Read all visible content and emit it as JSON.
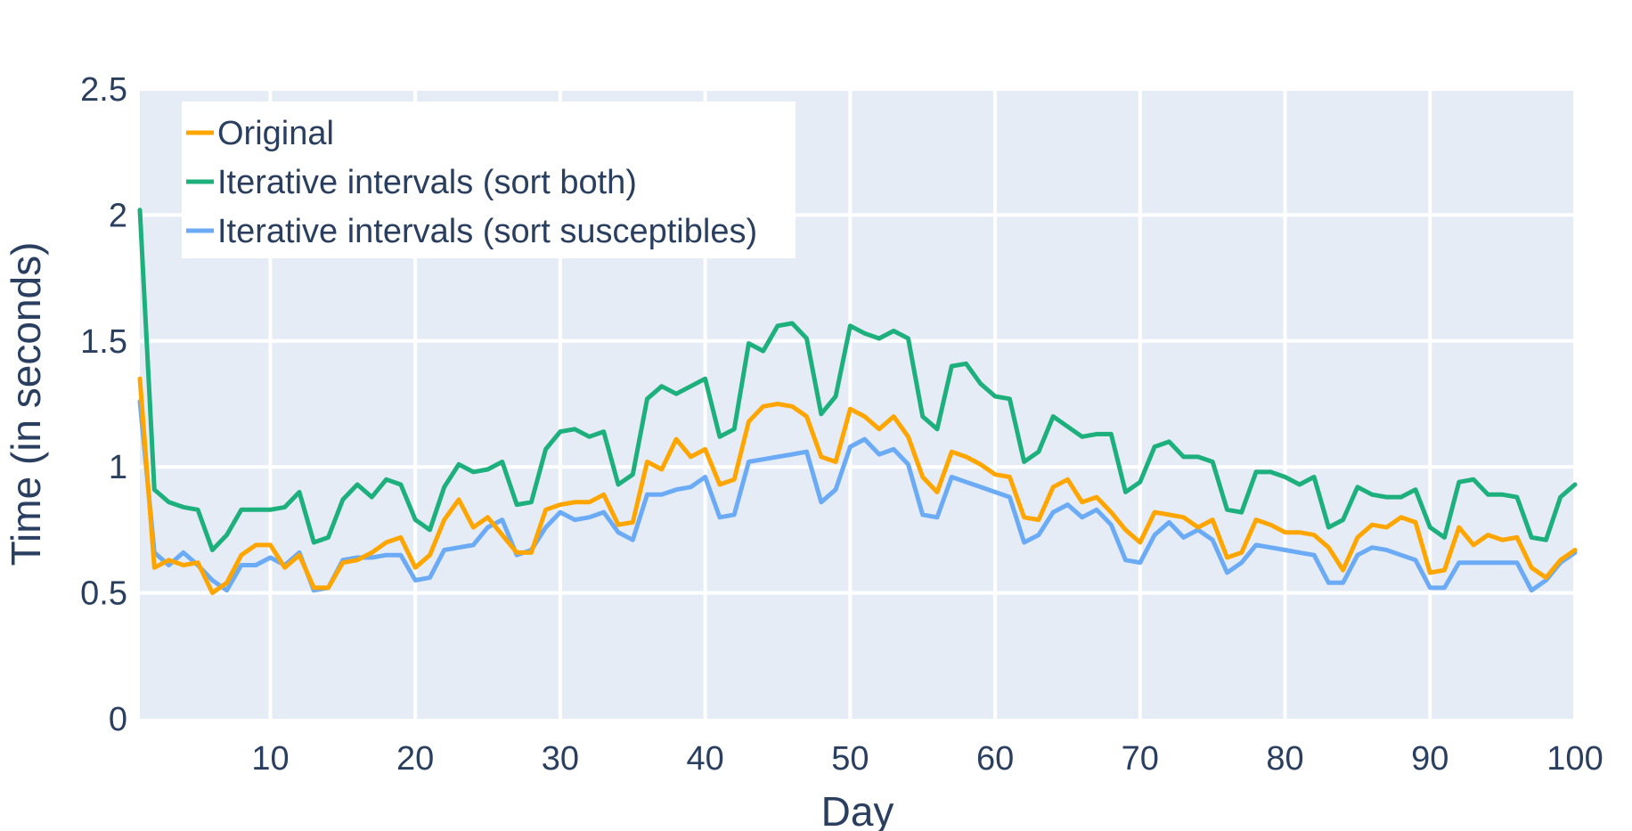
{
  "chart_data": {
    "type": "line",
    "xlabel": "Day",
    "ylabel": "Time (in seconds)",
    "xlim": [
      1,
      100
    ],
    "ylim": [
      0,
      2.5
    ],
    "x_ticks": [
      10,
      20,
      30,
      40,
      50,
      60,
      70,
      80,
      90,
      100
    ],
    "x_tick_labels": [
      "10",
      "20",
      "30",
      "40",
      "50",
      "60",
      "70",
      "80",
      "90",
      "100"
    ],
    "y_ticks": [
      0,
      0.5,
      1,
      1.5,
      2,
      2.5
    ],
    "y_tick_labels": [
      "0",
      "0.5",
      "1",
      "1.5",
      "2",
      "2.5"
    ],
    "grid": true,
    "plot_background": "#e5ecf6",
    "legend_position": "top-left",
    "x": [
      1,
      2,
      3,
      4,
      5,
      6,
      7,
      8,
      9,
      10,
      11,
      12,
      13,
      14,
      15,
      16,
      17,
      18,
      19,
      20,
      21,
      22,
      23,
      24,
      25,
      26,
      27,
      28,
      29,
      30,
      31,
      32,
      33,
      34,
      35,
      36,
      37,
      38,
      39,
      40,
      41,
      42,
      43,
      44,
      45,
      46,
      47,
      48,
      49,
      50,
      51,
      52,
      53,
      54,
      55,
      56,
      57,
      58,
      59,
      60,
      61,
      62,
      63,
      64,
      65,
      66,
      67,
      68,
      69,
      70,
      71,
      72,
      73,
      74,
      75,
      76,
      77,
      78,
      79,
      80,
      81,
      82,
      83,
      84,
      85,
      86,
      87,
      88,
      89,
      90,
      91,
      92,
      93,
      94,
      95,
      96,
      97,
      98,
      99,
      100
    ],
    "series": [
      {
        "name": "Original",
        "color": "#ffa500",
        "values": [
          1.35,
          0.6,
          0.63,
          0.61,
          0.62,
          0.5,
          0.54,
          0.65,
          0.69,
          0.69,
          0.6,
          0.65,
          0.52,
          0.52,
          0.62,
          0.63,
          0.66,
          0.7,
          0.72,
          0.6,
          0.65,
          0.79,
          0.87,
          0.76,
          0.8,
          0.73,
          0.66,
          0.66,
          0.83,
          0.85,
          0.86,
          0.86,
          0.89,
          0.77,
          0.78,
          1.02,
          0.99,
          1.11,
          1.04,
          1.07,
          0.93,
          0.95,
          1.18,
          1.24,
          1.25,
          1.24,
          1.2,
          1.04,
          1.02,
          1.23,
          1.2,
          1.15,
          1.2,
          1.12,
          0.96,
          0.9,
          1.06,
          1.04,
          1.01,
          0.97,
          0.96,
          0.8,
          0.79,
          0.92,
          0.95,
          0.86,
          0.88,
          0.82,
          0.75,
          0.7,
          0.82,
          0.81,
          0.8,
          0.76,
          0.79,
          0.64,
          0.66,
          0.79,
          0.77,
          0.74,
          0.74,
          0.73,
          0.68,
          0.59,
          0.72,
          0.77,
          0.76,
          0.8,
          0.78,
          0.58,
          0.59,
          0.76,
          0.69,
          0.73,
          0.71,
          0.72,
          0.6,
          0.56,
          0.63,
          0.67
        ]
      },
      {
        "name": "Iterative intervals (sort both)",
        "color": "#1db07c",
        "values": [
          2.02,
          0.91,
          0.86,
          0.84,
          0.83,
          0.67,
          0.73,
          0.83,
          0.83,
          0.83,
          0.84,
          0.9,
          0.7,
          0.72,
          0.87,
          0.93,
          0.88,
          0.95,
          0.93,
          0.79,
          0.75,
          0.92,
          1.01,
          0.98,
          0.99,
          1.02,
          0.85,
          0.86,
          1.07,
          1.14,
          1.15,
          1.12,
          1.14,
          0.93,
          0.97,
          1.27,
          1.32,
          1.29,
          1.32,
          1.35,
          1.12,
          1.15,
          1.49,
          1.46,
          1.56,
          1.57,
          1.51,
          1.21,
          1.28,
          1.56,
          1.53,
          1.51,
          1.54,
          1.51,
          1.2,
          1.15,
          1.4,
          1.41,
          1.33,
          1.28,
          1.27,
          1.02,
          1.06,
          1.2,
          1.16,
          1.12,
          1.13,
          1.13,
          0.9,
          0.94,
          1.08,
          1.1,
          1.04,
          1.04,
          1.02,
          0.83,
          0.82,
          0.98,
          0.98,
          0.96,
          0.93,
          0.96,
          0.76,
          0.79,
          0.92,
          0.89,
          0.88,
          0.88,
          0.91,
          0.76,
          0.72,
          0.94,
          0.95,
          0.89,
          0.89,
          0.88,
          0.72,
          0.71,
          0.88,
          0.93
        ]
      },
      {
        "name": "Iterative intervals (sort susceptibles)",
        "color": "#6babf5",
        "values": [
          1.26,
          0.66,
          0.61,
          0.66,
          0.61,
          0.55,
          0.51,
          0.61,
          0.61,
          0.64,
          0.61,
          0.66,
          0.51,
          0.52,
          0.63,
          0.64,
          0.64,
          0.65,
          0.65,
          0.55,
          0.56,
          0.67,
          0.68,
          0.69,
          0.76,
          0.79,
          0.65,
          0.67,
          0.76,
          0.82,
          0.79,
          0.8,
          0.82,
          0.74,
          0.71,
          0.89,
          0.89,
          0.91,
          0.92,
          0.96,
          0.8,
          0.81,
          1.02,
          1.03,
          1.04,
          1.05,
          1.06,
          0.86,
          0.91,
          1.08,
          1.11,
          1.05,
          1.07,
          1.01,
          0.81,
          0.8,
          0.96,
          0.94,
          0.92,
          0.9,
          0.88,
          0.7,
          0.73,
          0.82,
          0.85,
          0.8,
          0.83,
          0.77,
          0.63,
          0.62,
          0.73,
          0.78,
          0.72,
          0.75,
          0.71,
          0.58,
          0.62,
          0.69,
          0.68,
          0.67,
          0.66,
          0.65,
          0.54,
          0.54,
          0.65,
          0.68,
          0.67,
          0.65,
          0.63,
          0.52,
          0.52,
          0.62,
          0.62,
          0.62,
          0.62,
          0.62,
          0.51,
          0.55,
          0.62,
          0.66
        ]
      }
    ]
  }
}
